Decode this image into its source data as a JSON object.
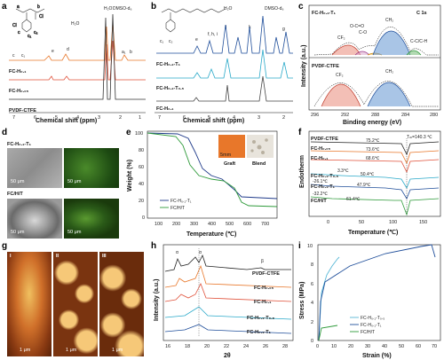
{
  "panel_labels": [
    "a",
    "b",
    "c",
    "d",
    "e",
    "f",
    "g",
    "h",
    "i"
  ],
  "a": {
    "xlabel": "Chemical shift (ppm)",
    "xticks": [
      "7",
      "6",
      "5",
      "4",
      "3",
      "2",
      "1"
    ],
    "peak_h2o": "H₂O",
    "peak_dmso": "DMSO-d₆",
    "traces": [
      "FC-H₀.₁",
      "FC-H₀.₀₅",
      "PVDF-CTFE"
    ],
    "peaks": [
      "a",
      "b",
      "c",
      "c₁",
      "c₂",
      "d",
      "e",
      "a₁",
      "b"
    ],
    "struct_labels": [
      "a",
      "b",
      "Cl",
      "c",
      "c₁",
      "c₂",
      "d",
      "e",
      "Ci"
    ]
  },
  "b": {
    "xlabel": "Chemical shift (ppm)",
    "xticks": [
      "7",
      "6",
      "5",
      "4",
      "3",
      "2"
    ],
    "peak_h2o": "H₂O",
    "peak_dmso": "DMSO-d₆",
    "traces": [
      "FC-H₀.₁-T₁",
      "FC-H₀.₁-T₀.₅",
      "FC-H₀.₁"
    ],
    "peaks": [
      "c₁",
      "c₂",
      "e",
      "f, h, i",
      "j",
      "k",
      "g"
    ]
  },
  "c": {
    "title": "C 1s",
    "ylabel": "Intensity (a.u.)",
    "xlabel": "Binding energy (eV)",
    "xticks": [
      "296",
      "292",
      "288",
      "284",
      "280"
    ],
    "top_name": "FC-H₀.₁-T₁",
    "top_labels": [
      "CH₂",
      "O-C=O",
      "C-O",
      "CF₂",
      "C-C/C-H"
    ],
    "bottom_name": "PVDF-CTFE",
    "bottom_labels": [
      "CF₂",
      "CH₂"
    ]
  },
  "d": {
    "top_name": "FC-H₀.₁-T₁",
    "bottom_name": "FC/H/T",
    "scale": "50 μm"
  },
  "e": {
    "ylabel": "Weight (%)",
    "xlabel": "Temperature (℃)",
    "yticks": [
      "100",
      "80",
      "60",
      "40",
      "20",
      "0"
    ],
    "xticks": [
      "100",
      "200",
      "300",
      "400",
      "500",
      "600",
      "700"
    ],
    "legend": [
      "FC-H₀.₁-T₁",
      "FC/H/T"
    ],
    "inset": [
      "Graft",
      "Blend"
    ],
    "inset_scale": "5mm",
    "colors": {
      "graft": "#1f3a8a",
      "blend": "#2e9a3a"
    }
  },
  "f": {
    "ylabel": "Endotherm",
    "xlabel": "Temperature (℃)",
    "xticks": [
      "0",
      "50",
      "100",
      "150"
    ],
    "tm_label": "Tₘ=140.3 ℃",
    "traces": [
      {
        "name": "PVDF-CTFE",
        "temp": "75.2℃",
        "color": "#222222"
      },
      {
        "name": "FC-H₀.₀₅",
        "temp": "73.6℃",
        "color": "#e8772a"
      },
      {
        "name": "FC-H₀.₁",
        "temp": "68.6℃",
        "color": "#e0513a"
      },
      {
        "name": "FC-H₀.₁-T₀.₅",
        "temp": "50.4℃",
        "temp2": "3.3℃",
        "color": "#2aa9c9"
      },
      {
        "name": "FC-H₀.₁-T₁",
        "temp": "47.9℃",
        "temp2": "-26.1℃",
        "color": "#1f4e9a"
      },
      {
        "name": "FC/H/T",
        "temp": "61.4℃",
        "temp2": "-32.2℃",
        "color": "#2e9a3a"
      }
    ]
  },
  "g": {
    "labels": [
      "I",
      "II",
      "III"
    ],
    "scale": "1 μm"
  },
  "h": {
    "ylabel": "Intensity (a.u.)",
    "xlabel": "2θ",
    "xticks": [
      "16",
      "18",
      "20",
      "22",
      "24",
      "26",
      "28"
    ],
    "markers": [
      "α",
      "α",
      "β"
    ],
    "traces": [
      {
        "name": "PVDF-CTFE",
        "color": "#222222"
      },
      {
        "name": "FC-H₀.₀₅",
        "color": "#e8772a"
      },
      {
        "name": "FC-H₀.₁",
        "color": "#e0513a"
      },
      {
        "name": "FC-H₀.₁-T₀.₅",
        "color": "#2aa9c9"
      },
      {
        "name": "FC-H₀.₁-T₁",
        "color": "#1f4e9a"
      }
    ]
  },
  "i": {
    "ylabel": "Stress (MPa)",
    "xlabel": "Strain (%)",
    "yticks": [
      "0",
      "2",
      "4",
      "6",
      "8",
      "10"
    ],
    "xticks": [
      "0",
      "10",
      "20",
      "30",
      "40",
      "50",
      "60",
      "70"
    ],
    "legend": [
      {
        "name": "FC-H₀.₁-T₀.₅",
        "color": "#57b7d6"
      },
      {
        "name": "FC-H₀.₁-T₁",
        "color": "#1f4e9a"
      },
      {
        "name": "FC/H/T",
        "color": "#2e9a3a"
      }
    ]
  }
}
